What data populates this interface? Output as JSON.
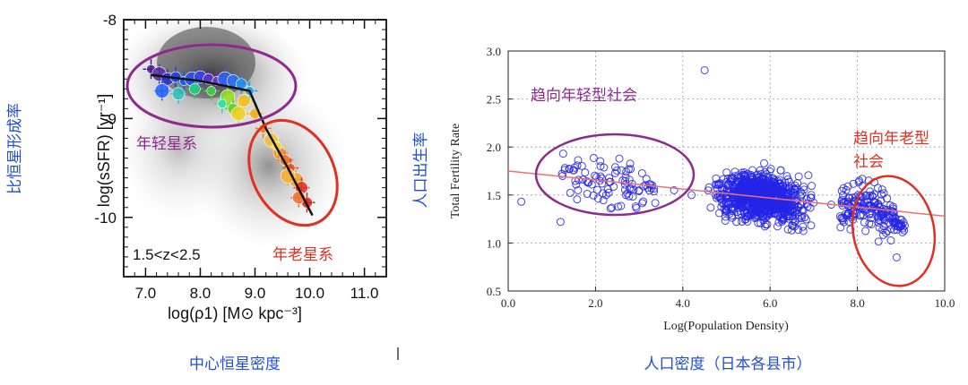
{
  "chart_data": [
    {
      "type": "scatter",
      "title": "",
      "xlabel": "log(ρ1) [M⊙ kpc⁻³]",
      "ylabel": "log(sSFR) [yr⁻¹]",
      "side_label": "比恒星形成率",
      "caption": "中心恒星密度",
      "xlim": [
        6.6,
        11.4
      ],
      "ylim": [
        -10.6,
        -8.0
      ],
      "x_ticks": [
        "7.0",
        "8.0",
        "9.0",
        "10.0",
        "11.0"
      ],
      "y_ticks": [
        "-8",
        "-9",
        "-10"
      ],
      "x_tick_values": [
        7.0,
        8.0,
        9.0,
        10.0,
        11.0
      ],
      "y_tick_values": [
        -8,
        -9,
        -10
      ],
      "redshift_label": "1.5<z<2.5",
      "annotations": {
        "young": "年轻星系",
        "old": "年老星系"
      },
      "fit_line": {
        "x": [
          7.1,
          8.0,
          8.9,
          9.2,
          9.6,
          10.05
        ],
        "y": [
          -8.56,
          -8.62,
          -8.72,
          -9.1,
          -9.5,
          -9.98
        ]
      },
      "points": {
        "x": [
          7.1,
          7.25,
          7.4,
          7.55,
          7.7,
          7.85,
          8.0,
          8.15,
          8.3,
          8.45,
          8.6,
          8.75,
          8.9,
          7.3,
          7.6,
          7.9,
          8.2,
          8.5,
          8.8,
          9.0,
          9.15,
          9.3,
          9.45,
          9.55,
          9.65,
          9.75,
          9.85,
          9.95,
          9.4,
          9.6,
          9.8,
          8.6,
          8.4,
          8.7
        ],
        "y": [
          -8.5,
          -8.55,
          -8.6,
          -8.58,
          -8.62,
          -8.6,
          -8.58,
          -8.6,
          -8.62,
          -8.6,
          -8.62,
          -8.65,
          -8.72,
          -8.72,
          -8.75,
          -8.7,
          -8.72,
          -8.78,
          -8.82,
          -8.95,
          -9.1,
          -9.22,
          -9.35,
          -9.42,
          -9.5,
          -9.62,
          -9.7,
          -9.85,
          -9.28,
          -9.58,
          -9.8,
          -8.9,
          -8.85,
          -8.95
        ],
        "colors": [
          "#4a1a8a",
          "#5a2aa0",
          "#3030c8",
          "#2040e0",
          "#1560f0",
          "#2a50f0",
          "#3a40e8",
          "#5a30d0",
          "#7030d0",
          "#3060f0",
          "#2a70f0",
          "#2090f0",
          "#20a0f0",
          "#2060ff",
          "#30c0c0",
          "#20d080",
          "#40d040",
          "#a0e020",
          "#f0c020",
          "#f0b020",
          "#f08020",
          "#f0c040",
          "#f09030",
          "#f07020",
          "#e05020",
          "#f0a030",
          "#e03020",
          "#d02020",
          "#f8d040",
          "#f8b030",
          "#f07030",
          "#60d020",
          "#30e0a0",
          "#f0d020"
        ]
      }
    },
    {
      "type": "scatter",
      "title": "",
      "xlabel": "Log(Population Density)",
      "ylabel": "Total Fertility Rate",
      "side_label": "人口出生率",
      "caption": "人口密度（日本各县市）",
      "xlim": [
        0.0,
        10.0
      ],
      "ylim": [
        0.5,
        3.0
      ],
      "x_ticks": [
        "0.0",
        "2.0",
        "4.0",
        "6.0",
        "8.0",
        "10.0"
      ],
      "y_ticks": [
        "0.5",
        "1.0",
        "1.5",
        "2.0",
        "2.5",
        "3.0"
      ],
      "x_tick_values": [
        0,
        2,
        4,
        6,
        8,
        10
      ],
      "y_tick_values": [
        0.5,
        1.0,
        1.5,
        2.0,
        2.5,
        3.0
      ],
      "grid": true,
      "trend_line": {
        "x": [
          0.0,
          10.0
        ],
        "y": [
          1.75,
          1.28
        ]
      },
      "annotations": {
        "young": "趋向年轻型社会",
        "old_line1": "趋向年老型",
        "old_line2": "社会"
      },
      "points": {
        "x": [
          0.3,
          1.2,
          1.6,
          2.1,
          2.7,
          3.3,
          3.8,
          4.2,
          4.6,
          5.0,
          5.4,
          5.8,
          6.2,
          6.6,
          7.0,
          7.4,
          7.8,
          8.2,
          8.6,
          9.0,
          4.5,
          8.9
        ],
        "y": [
          1.43,
          1.22,
          1.55,
          1.65,
          1.5,
          1.6,
          1.55,
          1.5,
          1.58,
          1.55,
          1.52,
          1.5,
          1.48,
          1.45,
          1.42,
          1.4,
          1.38,
          1.35,
          1.3,
          1.2,
          2.8,
          0.85
        ]
      }
    }
  ]
}
